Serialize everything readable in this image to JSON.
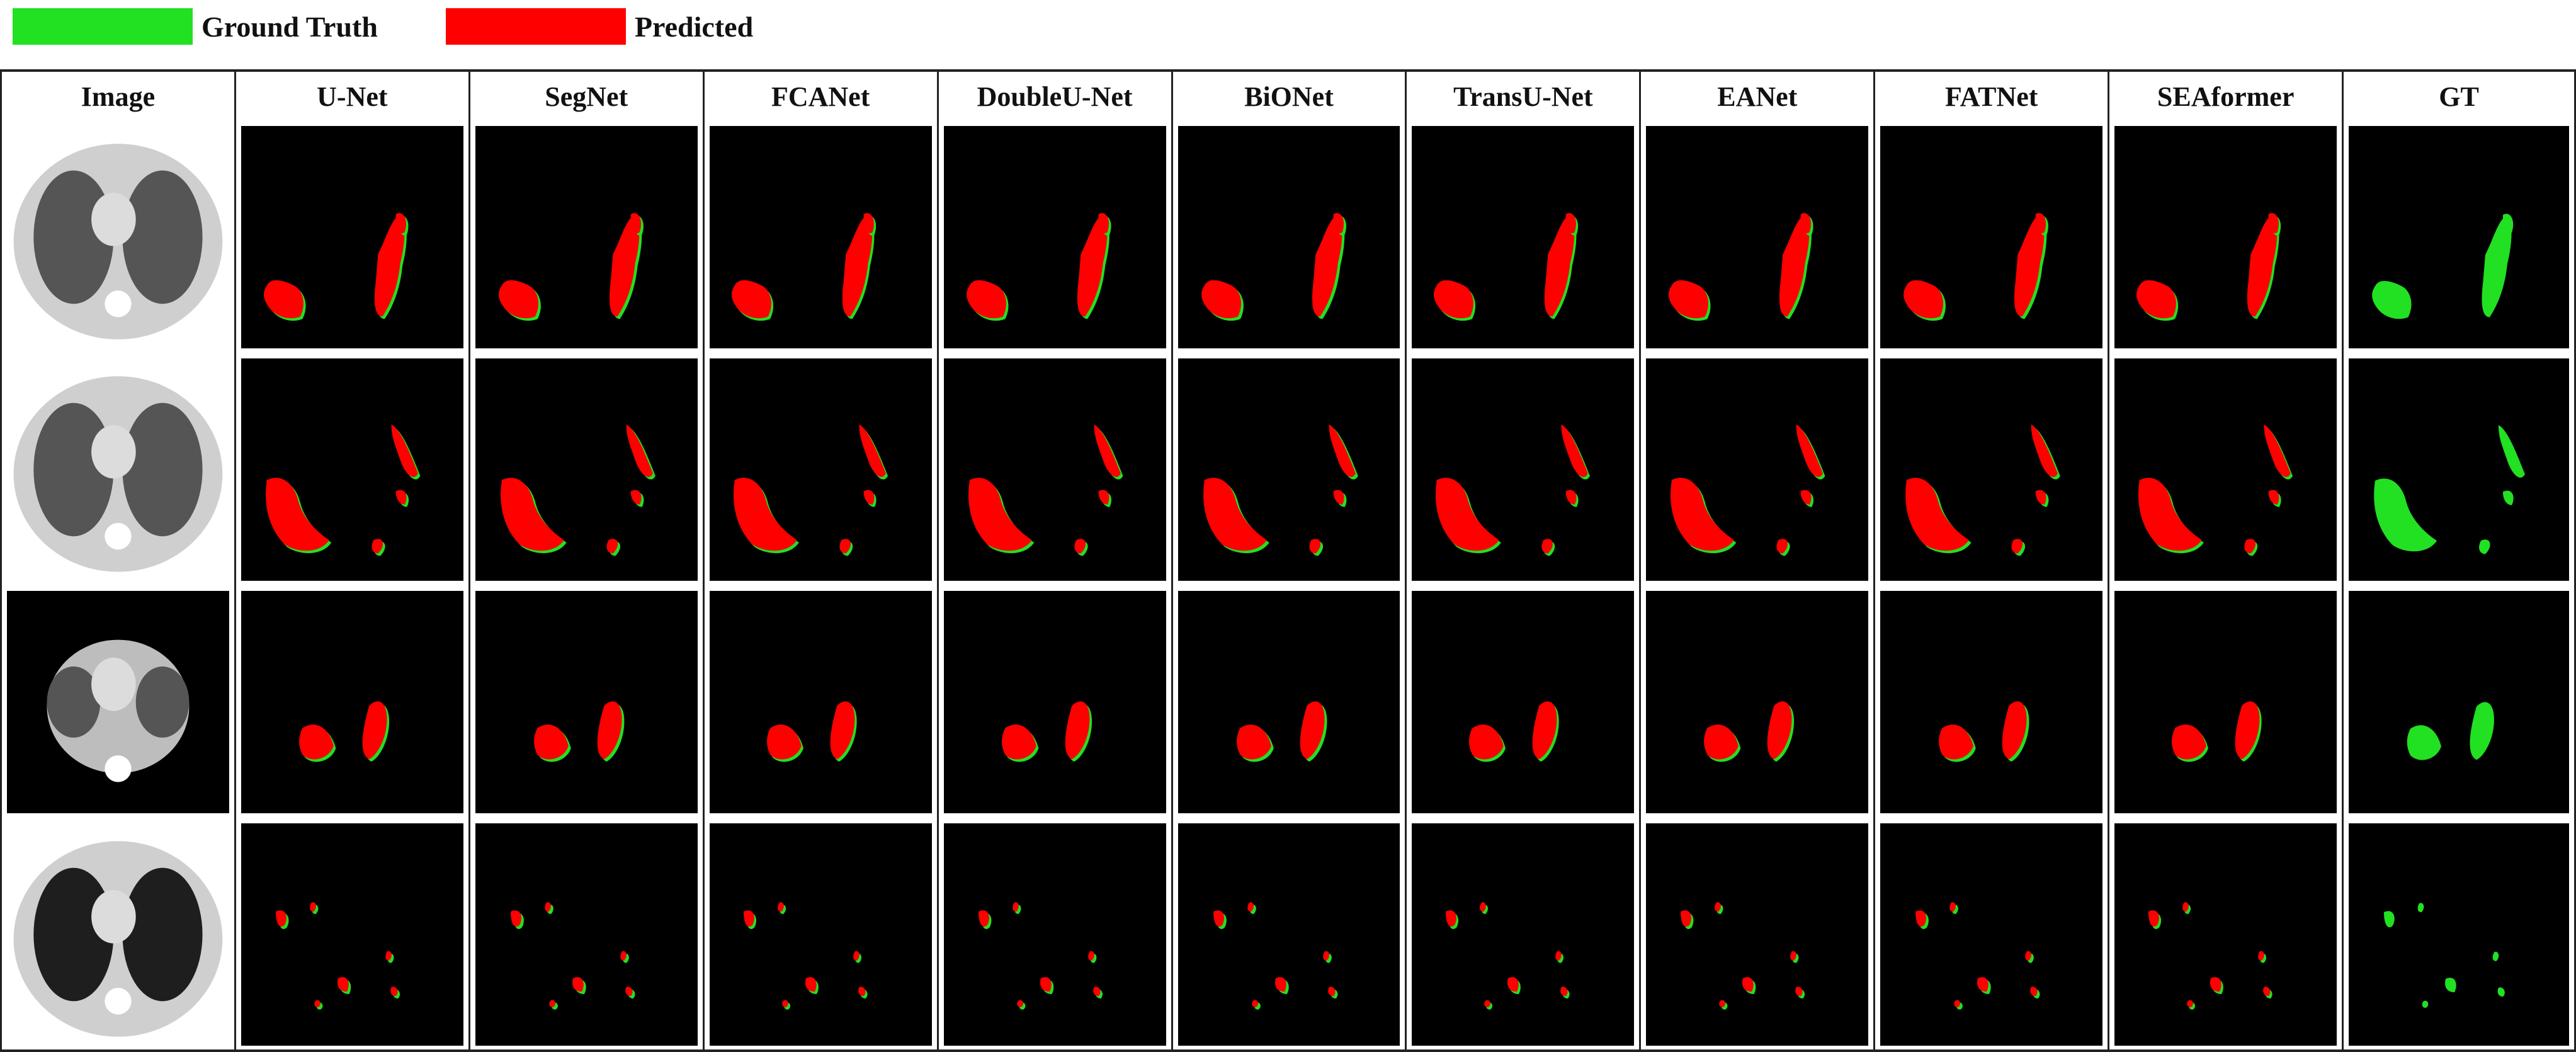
{
  "legend": [
    {
      "label": "Ground Truth",
      "color": "#22e022"
    },
    {
      "label": "Predicted",
      "color": "#ff0000"
    }
  ],
  "columns": [
    "Image",
    "U-Net",
    "SegNet",
    "FCANet",
    "DoubleU-Net",
    "BiONet",
    "TransU-Net",
    "EANet",
    "FATNet",
    "SEAformer",
    "GT"
  ],
  "row_count": 4,
  "colors": {
    "gt": "#22e022",
    "pred": "#ff0000",
    "panel_bg": "#000000"
  }
}
